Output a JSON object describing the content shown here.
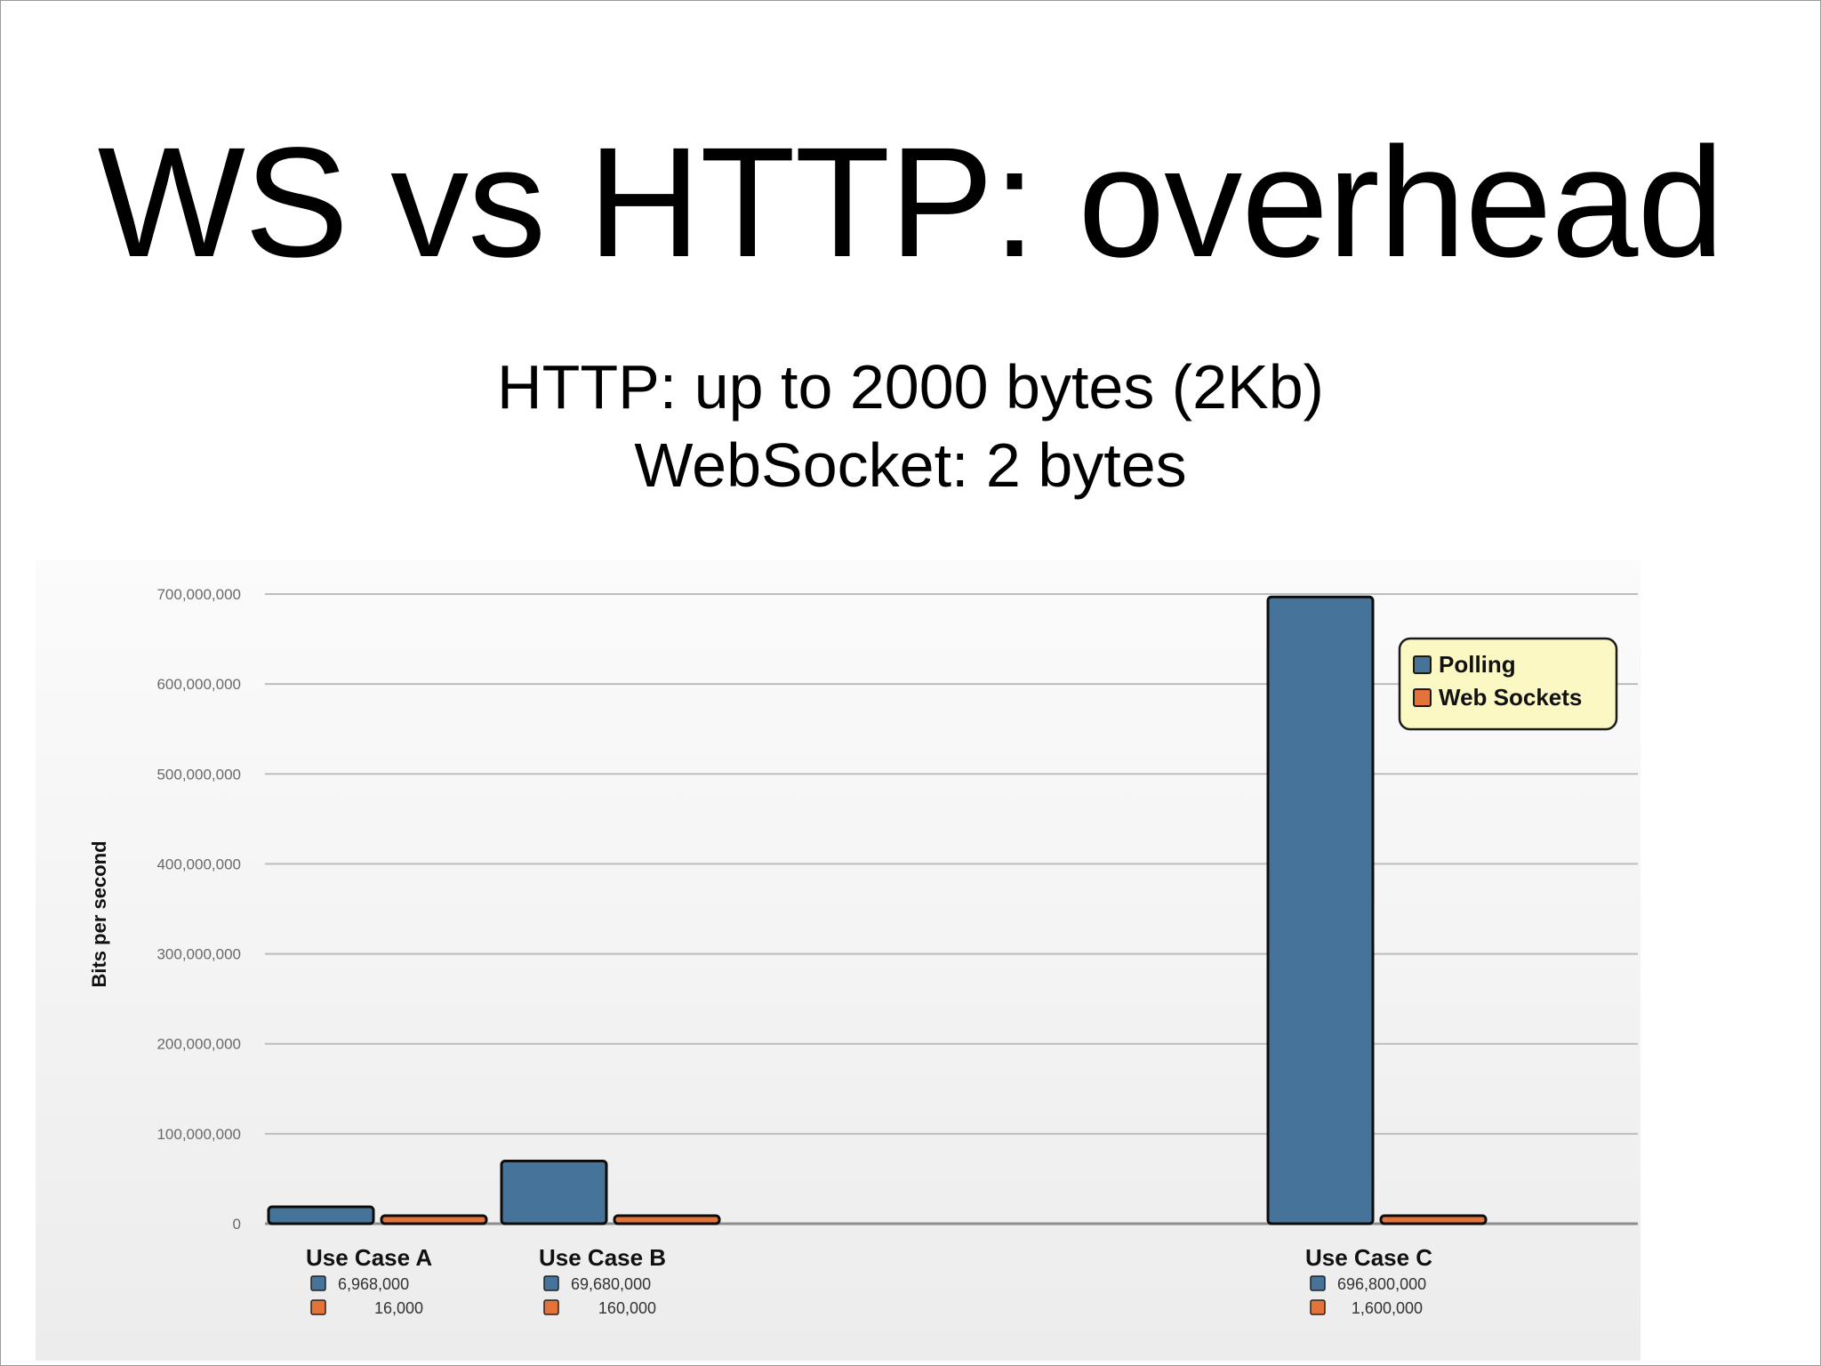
{
  "slide": {
    "title": "WS vs HTTP: overhead",
    "subtitle_lines": [
      "HTTP: up to 2000 bytes (2Kb)",
      "WebSocket: 2 bytes"
    ]
  },
  "chart_data": {
    "type": "bar",
    "title": "",
    "xlabel": "",
    "ylabel": "Bits per second",
    "ylim": [
      0,
      700000000
    ],
    "yticks": [
      0,
      100000000,
      200000000,
      300000000,
      400000000,
      500000000,
      600000000,
      700000000
    ],
    "ytick_labels": [
      "0",
      "100,000,000",
      "200,000,000",
      "300,000,000",
      "400,000,000",
      "500,000,000",
      "600,000,000",
      "700,000,000"
    ],
    "grid": true,
    "legend_position": "top-right",
    "categories": [
      "Use Case A",
      "Use Case B",
      "Use Case C"
    ],
    "series": [
      {
        "name": "Polling",
        "color": "#46739a",
        "values": [
          6968000,
          69680000,
          696800000
        ],
        "value_labels": [
          "6,968,000",
          "69,680,000",
          "696,800,000"
        ]
      },
      {
        "name": "Web Sockets",
        "color": "#e4733a",
        "values": [
          16000,
          160000,
          1600000
        ],
        "value_labels": [
          "16,000",
          "160,000",
          "1,600,000"
        ]
      }
    ]
  }
}
